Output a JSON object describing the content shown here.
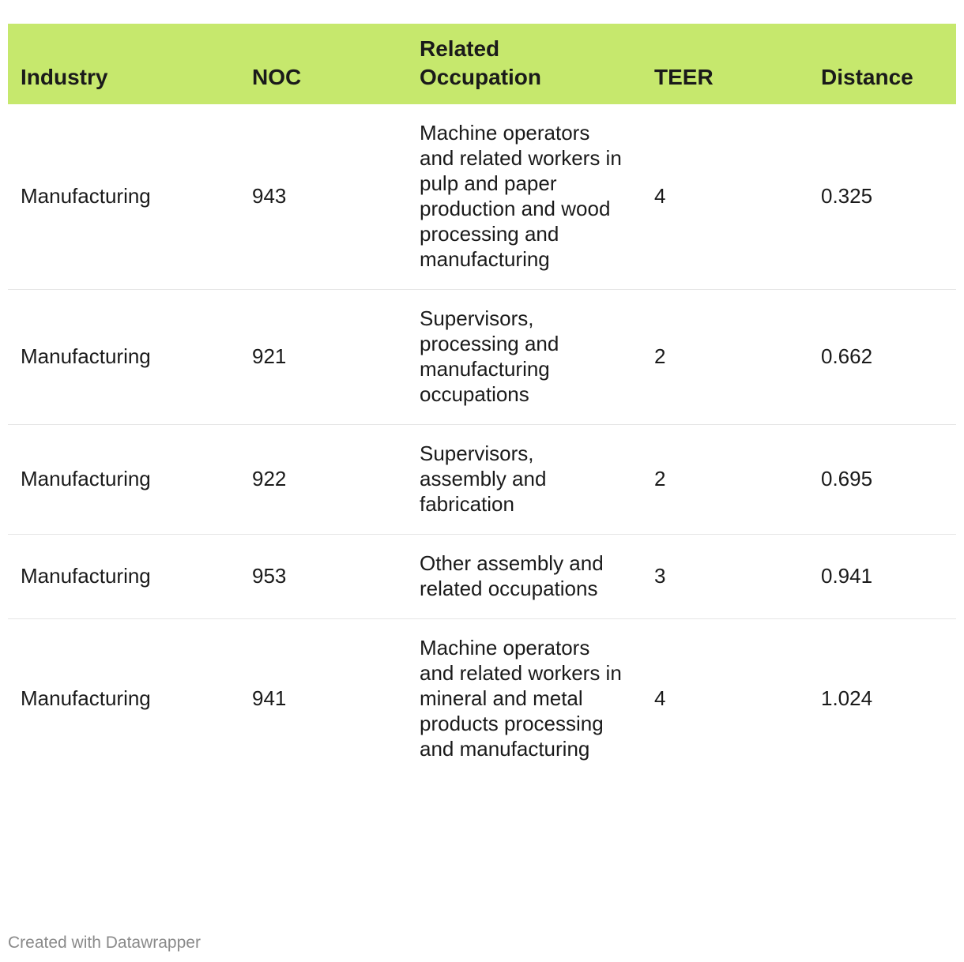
{
  "chart_data": {
    "type": "table",
    "columns": [
      "Industry",
      "NOC",
      "Related Occupation",
      "TEER",
      "Distance"
    ],
    "rows": [
      [
        "Manufacturing",
        "943",
        "Machine operators and related workers in pulp and paper production and wood processing and manufacturing",
        "4",
        "0.325"
      ],
      [
        "Manufacturing",
        "921",
        "Supervisors, processing and manufacturing occupations",
        "2",
        "0.662"
      ],
      [
        "Manufacturing",
        "922",
        "Supervisors, assembly and fabrication",
        "2",
        "0.695"
      ],
      [
        "Manufacturing",
        "953",
        "Other assembly and related occupations",
        "3",
        "0.941"
      ],
      [
        "Manufacturing",
        "941",
        "Machine operators and related workers in mineral and metal products processing and manufacturing",
        "4",
        "1.024"
      ]
    ],
    "header_color": "#c6e86d"
  },
  "footer": {
    "credit": "Created with Datawrapper"
  }
}
